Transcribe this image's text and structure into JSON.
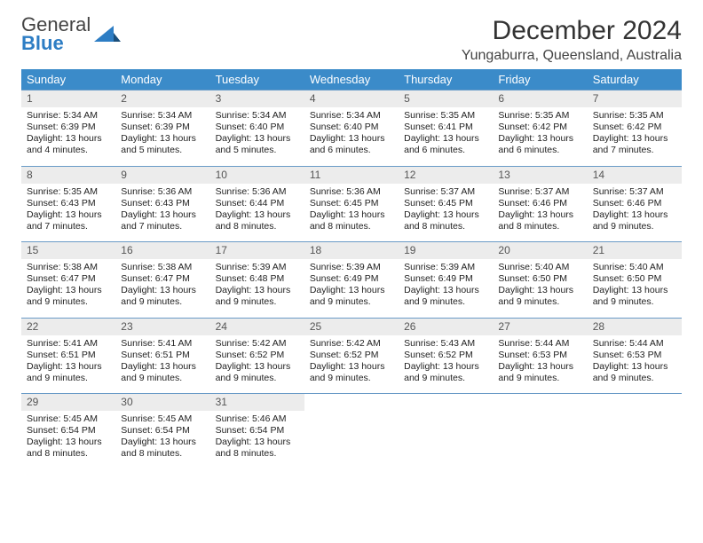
{
  "logo": {
    "word1": "General",
    "word2": "Blue"
  },
  "title": "December 2024",
  "location": "Yungaburra, Queensland, Australia",
  "colors": {
    "header_bg": "#3b8bc9",
    "header_text": "#ffffff",
    "daynum_bg": "#ececec",
    "row_border": "#6a9bc7",
    "logo_blue": "#2d7dc4"
  },
  "weekdays": [
    "Sunday",
    "Monday",
    "Tuesday",
    "Wednesday",
    "Thursday",
    "Friday",
    "Saturday"
  ],
  "days": [
    {
      "n": "1",
      "sr": "5:34 AM",
      "ss": "6:39 PM",
      "dl": "13 hours and 4 minutes."
    },
    {
      "n": "2",
      "sr": "5:34 AM",
      "ss": "6:39 PM",
      "dl": "13 hours and 5 minutes."
    },
    {
      "n": "3",
      "sr": "5:34 AM",
      "ss": "6:40 PM",
      "dl": "13 hours and 5 minutes."
    },
    {
      "n": "4",
      "sr": "5:34 AM",
      "ss": "6:40 PM",
      "dl": "13 hours and 6 minutes."
    },
    {
      "n": "5",
      "sr": "5:35 AM",
      "ss": "6:41 PM",
      "dl": "13 hours and 6 minutes."
    },
    {
      "n": "6",
      "sr": "5:35 AM",
      "ss": "6:42 PM",
      "dl": "13 hours and 6 minutes."
    },
    {
      "n": "7",
      "sr": "5:35 AM",
      "ss": "6:42 PM",
      "dl": "13 hours and 7 minutes."
    },
    {
      "n": "8",
      "sr": "5:35 AM",
      "ss": "6:43 PM",
      "dl": "13 hours and 7 minutes."
    },
    {
      "n": "9",
      "sr": "5:36 AM",
      "ss": "6:43 PM",
      "dl": "13 hours and 7 minutes."
    },
    {
      "n": "10",
      "sr": "5:36 AM",
      "ss": "6:44 PM",
      "dl": "13 hours and 8 minutes."
    },
    {
      "n": "11",
      "sr": "5:36 AM",
      "ss": "6:45 PM",
      "dl": "13 hours and 8 minutes."
    },
    {
      "n": "12",
      "sr": "5:37 AM",
      "ss": "6:45 PM",
      "dl": "13 hours and 8 minutes."
    },
    {
      "n": "13",
      "sr": "5:37 AM",
      "ss": "6:46 PM",
      "dl": "13 hours and 8 minutes."
    },
    {
      "n": "14",
      "sr": "5:37 AM",
      "ss": "6:46 PM",
      "dl": "13 hours and 9 minutes."
    },
    {
      "n": "15",
      "sr": "5:38 AM",
      "ss": "6:47 PM",
      "dl": "13 hours and 9 minutes."
    },
    {
      "n": "16",
      "sr": "5:38 AM",
      "ss": "6:47 PM",
      "dl": "13 hours and 9 minutes."
    },
    {
      "n": "17",
      "sr": "5:39 AM",
      "ss": "6:48 PM",
      "dl": "13 hours and 9 minutes."
    },
    {
      "n": "18",
      "sr": "5:39 AM",
      "ss": "6:49 PM",
      "dl": "13 hours and 9 minutes."
    },
    {
      "n": "19",
      "sr": "5:39 AM",
      "ss": "6:49 PM",
      "dl": "13 hours and 9 minutes."
    },
    {
      "n": "20",
      "sr": "5:40 AM",
      "ss": "6:50 PM",
      "dl": "13 hours and 9 minutes."
    },
    {
      "n": "21",
      "sr": "5:40 AM",
      "ss": "6:50 PM",
      "dl": "13 hours and 9 minutes."
    },
    {
      "n": "22",
      "sr": "5:41 AM",
      "ss": "6:51 PM",
      "dl": "13 hours and 9 minutes."
    },
    {
      "n": "23",
      "sr": "5:41 AM",
      "ss": "6:51 PM",
      "dl": "13 hours and 9 minutes."
    },
    {
      "n": "24",
      "sr": "5:42 AM",
      "ss": "6:52 PM",
      "dl": "13 hours and 9 minutes."
    },
    {
      "n": "25",
      "sr": "5:42 AM",
      "ss": "6:52 PM",
      "dl": "13 hours and 9 minutes."
    },
    {
      "n": "26",
      "sr": "5:43 AM",
      "ss": "6:52 PM",
      "dl": "13 hours and 9 minutes."
    },
    {
      "n": "27",
      "sr": "5:44 AM",
      "ss": "6:53 PM",
      "dl": "13 hours and 9 minutes."
    },
    {
      "n": "28",
      "sr": "5:44 AM",
      "ss": "6:53 PM",
      "dl": "13 hours and 9 minutes."
    },
    {
      "n": "29",
      "sr": "5:45 AM",
      "ss": "6:54 PM",
      "dl": "13 hours and 8 minutes."
    },
    {
      "n": "30",
      "sr": "5:45 AM",
      "ss": "6:54 PM",
      "dl": "13 hours and 8 minutes."
    },
    {
      "n": "31",
      "sr": "5:46 AM",
      "ss": "6:54 PM",
      "dl": "13 hours and 8 minutes."
    }
  ],
  "labels": {
    "sunrise": "Sunrise:",
    "sunset": "Sunset:",
    "daylight": "Daylight:"
  }
}
